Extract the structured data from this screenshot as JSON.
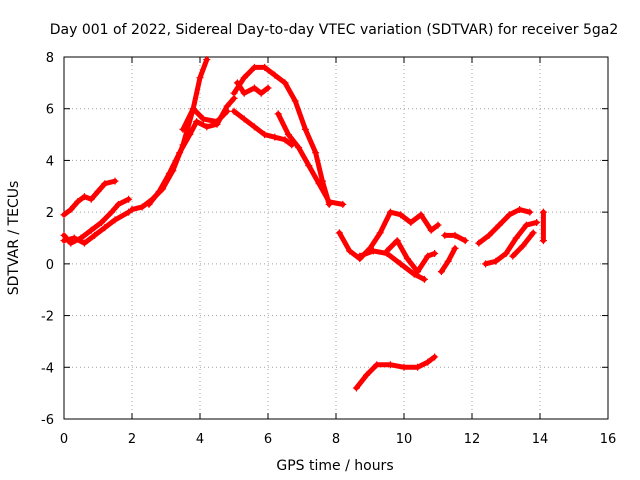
{
  "chart_data": {
    "type": "scatter",
    "title": "Day 001 of 2022, Sidereal Day-to-day VTEC variation (SDTVAR) for receiver 5ga2",
    "xlabel": "GPS time / hours",
    "ylabel": "SDTVAR / TECUs",
    "xlim": [
      0,
      16
    ],
    "ylim": [
      -6,
      8
    ],
    "xticks": [
      "0",
      "2",
      "4",
      "6",
      "8",
      "10",
      "12",
      "14",
      "16"
    ],
    "yticks": [
      "-6",
      "-4",
      "-2",
      "0",
      "2",
      "4",
      "6",
      "8"
    ],
    "grid": true,
    "marker": "+",
    "color": "#ff0000",
    "series": [
      {
        "points": [
          [
            0.0,
            1.9
          ],
          [
            0.2,
            2.1
          ],
          [
            0.4,
            2.4
          ],
          [
            0.6,
            2.6
          ],
          [
            0.8,
            2.5
          ],
          [
            1.0,
            2.8
          ],
          [
            1.2,
            3.1
          ],
          [
            1.5,
            3.2
          ]
        ]
      },
      {
        "points": [
          [
            0.0,
            1.1
          ],
          [
            0.2,
            0.8
          ],
          [
            0.5,
            1.0
          ],
          [
            0.8,
            1.3
          ],
          [
            1.1,
            1.6
          ],
          [
            1.4,
            2.0
          ],
          [
            1.6,
            2.3
          ],
          [
            1.9,
            2.5
          ]
        ]
      },
      {
        "points": [
          [
            0.0,
            0.9
          ],
          [
            0.3,
            1.0
          ],
          [
            0.6,
            0.8
          ],
          [
            0.9,
            1.1
          ],
          [
            1.2,
            1.4
          ],
          [
            1.5,
            1.7
          ],
          [
            1.9,
            2.0
          ]
        ]
      },
      {
        "points": [
          [
            2.0,
            2.1
          ],
          [
            2.3,
            2.2
          ],
          [
            2.6,
            2.5
          ],
          [
            2.9,
            2.9
          ],
          [
            3.2,
            3.6
          ],
          [
            3.5,
            4.6
          ],
          [
            3.8,
            6.0
          ],
          [
            4.0,
            7.2
          ],
          [
            4.2,
            7.9
          ]
        ]
      },
      {
        "points": [
          [
            2.5,
            2.3
          ],
          [
            2.8,
            2.8
          ],
          [
            3.1,
            3.5
          ],
          [
            3.4,
            4.3
          ],
          [
            3.7,
            5.0
          ],
          [
            3.9,
            5.5
          ],
          [
            4.2,
            5.3
          ],
          [
            4.5,
            5.4
          ],
          [
            4.8,
            6.1
          ],
          [
            5.0,
            6.4
          ]
        ]
      },
      {
        "points": [
          [
            3.5,
            5.2
          ],
          [
            3.8,
            6.0
          ],
          [
            4.1,
            5.6
          ],
          [
            4.5,
            5.5
          ],
          [
            4.8,
            5.9
          ]
        ]
      },
      {
        "points": [
          [
            5.0,
            6.6
          ],
          [
            5.3,
            7.2
          ],
          [
            5.6,
            7.6
          ],
          [
            5.9,
            7.6
          ],
          [
            6.2,
            7.3
          ],
          [
            6.5,
            7.0
          ],
          [
            6.8,
            6.3
          ],
          [
            7.1,
            5.2
          ],
          [
            7.4,
            4.3
          ],
          [
            7.6,
            3.2
          ],
          [
            7.8,
            2.3
          ]
        ]
      },
      {
        "points": [
          [
            5.1,
            7.0
          ],
          [
            5.3,
            6.6
          ],
          [
            5.6,
            6.8
          ],
          [
            5.8,
            6.6
          ],
          [
            6.0,
            6.8
          ]
        ]
      },
      {
        "points": [
          [
            5.0,
            5.9
          ],
          [
            5.3,
            5.6
          ],
          [
            5.6,
            5.3
          ],
          [
            5.9,
            5.0
          ],
          [
            6.2,
            4.9
          ],
          [
            6.5,
            4.8
          ],
          [
            6.7,
            4.6
          ]
        ]
      },
      {
        "points": [
          [
            6.3,
            5.8
          ],
          [
            6.6,
            5.0
          ],
          [
            6.9,
            4.5
          ],
          [
            7.2,
            3.8
          ],
          [
            7.5,
            3.1
          ],
          [
            7.8,
            2.4
          ],
          [
            8.2,
            2.3
          ]
        ]
      },
      {
        "points": [
          [
            8.1,
            1.2
          ],
          [
            8.4,
            0.5
          ],
          [
            8.7,
            0.2
          ],
          [
            9.0,
            0.6
          ],
          [
            9.3,
            1.2
          ],
          [
            9.6,
            2.0
          ],
          [
            9.9,
            1.9
          ],
          [
            10.2,
            1.6
          ],
          [
            10.5,
            1.9
          ],
          [
            10.8,
            1.3
          ],
          [
            11.0,
            1.5
          ]
        ]
      },
      {
        "points": [
          [
            8.7,
            0.3
          ],
          [
            9.1,
            0.5
          ],
          [
            9.5,
            0.4
          ],
          [
            9.9,
            0.0
          ],
          [
            10.3,
            -0.4
          ],
          [
            10.6,
            -0.6
          ]
        ]
      },
      {
        "points": [
          [
            9.5,
            0.5
          ],
          [
            9.8,
            0.9
          ],
          [
            10.1,
            0.2
          ],
          [
            10.4,
            -0.3
          ],
          [
            10.7,
            0.3
          ],
          [
            10.9,
            0.4
          ]
        ]
      },
      {
        "points": [
          [
            11.1,
            -0.3
          ],
          [
            11.3,
            0.1
          ],
          [
            11.5,
            0.6
          ]
        ]
      },
      {
        "points": [
          [
            11.2,
            1.1
          ],
          [
            11.5,
            1.1
          ],
          [
            11.8,
            0.9
          ]
        ]
      },
      {
        "points": [
          [
            8.6,
            -4.8
          ],
          [
            8.9,
            -4.3
          ],
          [
            9.2,
            -3.9
          ],
          [
            9.6,
            -3.9
          ],
          [
            10.0,
            -4.0
          ],
          [
            10.4,
            -4.0
          ],
          [
            10.7,
            -3.8
          ],
          [
            10.9,
            -3.6
          ]
        ]
      },
      {
        "points": [
          [
            12.2,
            0.8
          ],
          [
            12.5,
            1.1
          ],
          [
            12.8,
            1.5
          ],
          [
            13.1,
            1.9
          ],
          [
            13.4,
            2.1
          ],
          [
            13.7,
            2.0
          ]
        ]
      },
      {
        "points": [
          [
            12.4,
            0.0
          ],
          [
            12.7,
            0.1
          ],
          [
            13.0,
            0.4
          ],
          [
            13.3,
            1.0
          ],
          [
            13.6,
            1.5
          ],
          [
            13.9,
            1.6
          ]
        ]
      },
      {
        "points": [
          [
            13.2,
            0.3
          ],
          [
            13.5,
            0.7
          ],
          [
            13.8,
            1.2
          ]
        ]
      },
      {
        "points": [
          [
            14.1,
            2.0
          ],
          [
            14.1,
            0.9
          ]
        ]
      }
    ]
  }
}
